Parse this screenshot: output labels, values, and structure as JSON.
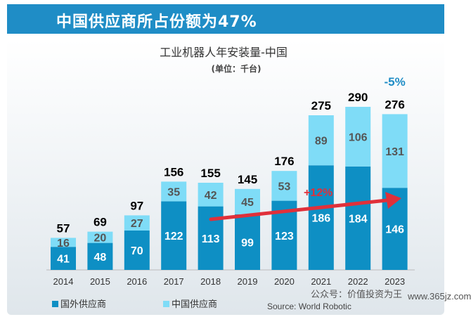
{
  "header": {
    "title": "中国供应商所占份额为47%"
  },
  "chart_data": {
    "type": "bar",
    "stacked": true,
    "title": "工业机器人年安装量-中国",
    "subtitle": "(单位：千台)",
    "categories": [
      "2014",
      "2015",
      "2016",
      "2017",
      "2018",
      "2019",
      "2020",
      "2021",
      "2022",
      "2023"
    ],
    "series": [
      {
        "name": "国外供应商",
        "color": "#0e8fc4",
        "values": [
          41,
          48,
          70,
          122,
          113,
          99,
          123,
          186,
          184,
          146
        ]
      },
      {
        "name": "中国供应商",
        "color": "#7fdcf7",
        "values": [
          16,
          20,
          27,
          35,
          42,
          45,
          53,
          89,
          106,
          131
        ]
      }
    ],
    "totals": [
      57,
      69,
      97,
      156,
      155,
      145,
      176,
      275,
      290,
      276
    ],
    "ylim": [
      0,
      300
    ],
    "grid": false,
    "legend_position": "bottom-left",
    "annotations": [
      {
        "text": "+12%",
        "color": "#e0303a"
      },
      {
        "text": "-5%",
        "color": "#1f8dc6"
      }
    ],
    "source": "Source: World Robotic",
    "watermark_text": "公众号：价值投资为王"
  },
  "watermark": "www.365jz.com"
}
